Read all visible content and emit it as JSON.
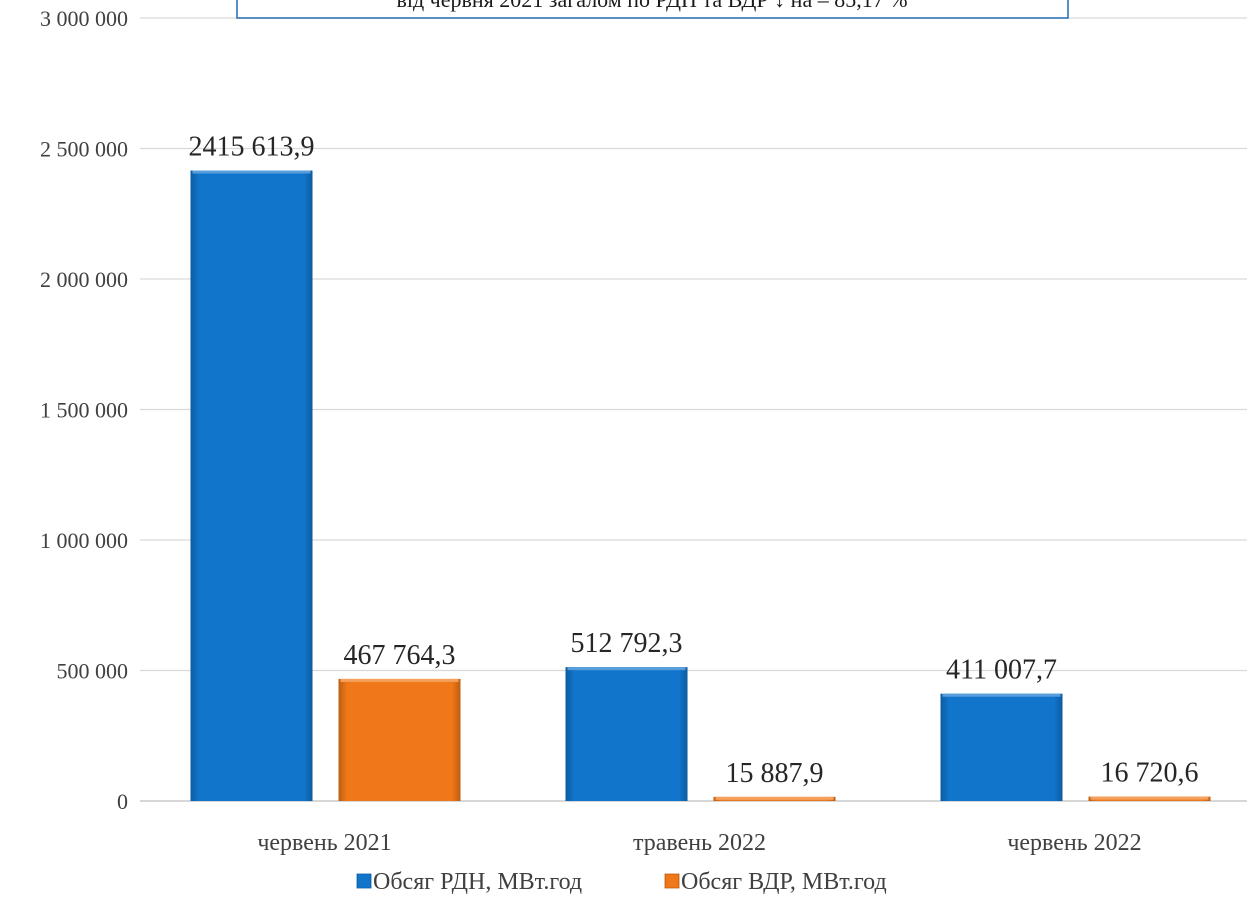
{
  "chart_data": {
    "type": "bar",
    "categories": [
      "червень 2021",
      "травень 2022",
      "червень 2022"
    ],
    "series": [
      {
        "name": "Обсяг РДН, МВт.год",
        "values": [
          2415613.9,
          512792.3,
          411007.7
        ],
        "data_labels": [
          "2415 613,9",
          "512 792,3",
          "411 007,7"
        ],
        "color": "#1175cc"
      },
      {
        "name": "Обсяг ВДР, МВт.год",
        "values": [
          467764.3,
          15887.9,
          16720.6
        ],
        "data_labels": [
          "467 764,3",
          "15 887,9",
          "16 720,6"
        ],
        "color": "#f07818"
      }
    ],
    "ylim": [
      0,
      3000000
    ],
    "y_ticks": [
      {
        "value": 0,
        "label": "0"
      },
      {
        "value": 500000,
        "label": "500 000"
      },
      {
        "value": 1000000,
        "label": "1 000 000"
      },
      {
        "value": 1500000,
        "label": "1 500 000"
      },
      {
        "value": 2000000,
        "label": "2 000 000"
      },
      {
        "value": 2500000,
        "label": "2 500 000"
      },
      {
        "value": 3000000,
        "label": "3 000 000"
      }
    ],
    "grid": true,
    "legend": "bottom",
    "annotation": "від червня 2021 загалом по РДН та ВДР ↓ на – 85,17 %",
    "annotation_border_color": "#2e75b6",
    "grid_color": "#d9d9d9",
    "axis_color": "#bfbfbf"
  }
}
